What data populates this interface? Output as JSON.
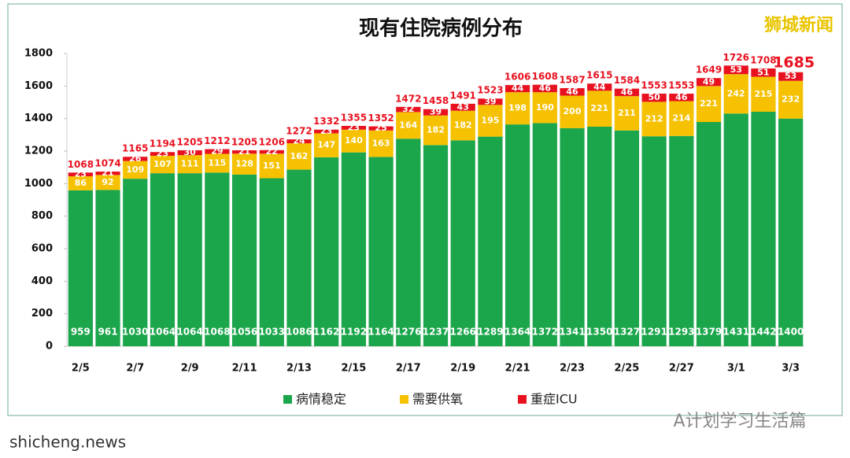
{
  "chart_data": {
    "type": "stacked-bar",
    "title": "现有住院病例分布",
    "categories": [
      "2/5",
      null,
      "2/7",
      null,
      "2/9",
      null,
      "2/11",
      null,
      "2/13",
      null,
      "2/15",
      null,
      "2/17",
      null,
      "2/19",
      null,
      "2/21",
      null,
      "2/23",
      null,
      "2/25",
      null,
      "2/27",
      null,
      "3/1",
      null,
      "3/3"
    ],
    "series": [
      {
        "name": "病情稳定",
        "color": "#1ca64c",
        "values": [
          959,
          961,
          1030,
          1064,
          1064,
          1068,
          1056,
          1033,
          1086,
          1162,
          1192,
          1164,
          1276,
          1237,
          1266,
          1289,
          1364,
          1372,
          1341,
          1350,
          1327,
          1291,
          1293,
          1379,
          1431,
          1442,
          1400
        ]
      },
      {
        "name": "需要供氧",
        "color": "#f6c100",
        "values": [
          86,
          92,
          109,
          107,
          111,
          115,
          128,
          151,
          162,
          147,
          140,
          163,
          164,
          182,
          182,
          195,
          198,
          190,
          200,
          221,
          211,
          212,
          214,
          221,
          242,
          215,
          232
        ]
      },
      {
        "name": "重症ICU",
        "color": "#e8111f",
        "values": [
          23,
          21,
          26,
          23,
          30,
          29,
          21,
          22,
          24,
          23,
          23,
          25,
          32,
          39,
          43,
          39,
          44,
          46,
          46,
          44,
          46,
          50,
          46,
          49,
          53,
          51,
          53
        ]
      }
    ],
    "totals": [
      1068,
      1074,
      1165,
      1194,
      1205,
      1212,
      1205,
      1206,
      1272,
      1332,
      1355,
      1352,
      1472,
      1458,
      1491,
      1523,
      1606,
      1608,
      1587,
      1615,
      1584,
      1553,
      1553,
      1649,
      1726,
      1708,
      1685
    ],
    "ylim": [
      0,
      1800
    ],
    "yticks": [
      0,
      200,
      400,
      600,
      800,
      1000,
      1200,
      1400,
      1600,
      1800
    ],
    "grid": false,
    "legend": "bottom",
    "watermarks": [
      "狮城新闻",
      "A计划学习生活篇",
      "shicheng.news"
    ]
  }
}
